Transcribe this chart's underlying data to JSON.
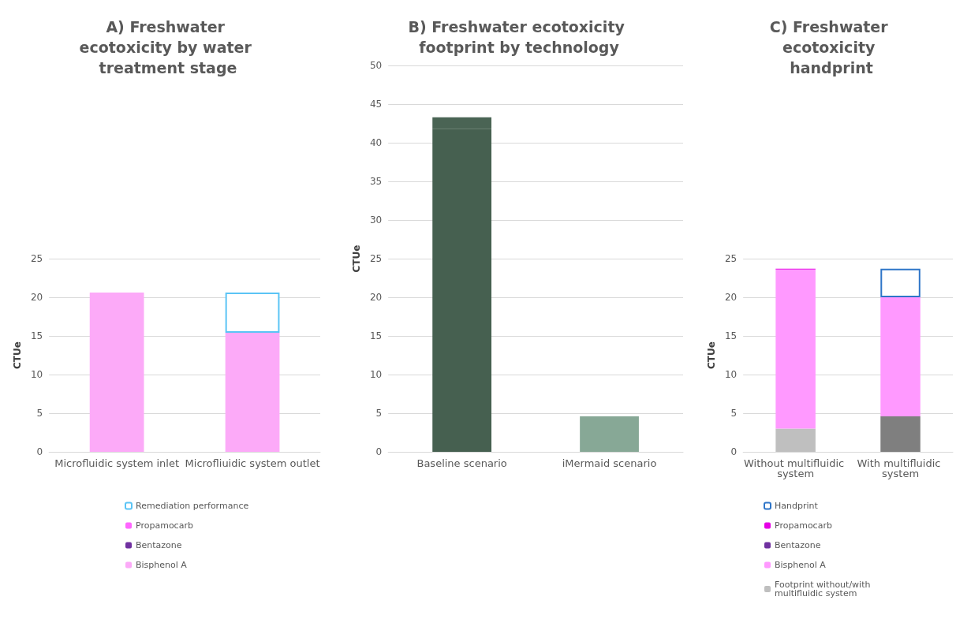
{
  "chart_data": [
    {
      "type": "bar",
      "title": "A) Freshwater ecotoxicity by water treatment stage",
      "ylabel": "CTUe",
      "categories": [
        "Microfluidic system inlet",
        "Microfliuidic system outlet"
      ],
      "stacked": true,
      "ylim": [
        0,
        25
      ],
      "yticks": [
        0,
        5,
        10,
        15,
        20,
        25
      ],
      "grid": "y",
      "legend": "bottom",
      "series": [
        {
          "name": "Bisphenol A",
          "color": "#fcaaf8",
          "values": [
            20.6,
            15.4
          ]
        },
        {
          "name": "Bentazone",
          "color": "#7030a0",
          "values": [
            0,
            0
          ]
        },
        {
          "name": "Propamocarb",
          "color": "#ff66ff",
          "values": [
            0,
            0
          ]
        },
        {
          "name": "Remediation performance",
          "color": "#5bc4f5",
          "line_style": "solid",
          "values": [
            null,
            5.2
          ]
        }
      ]
    },
    {
      "type": "bar",
      "title": "B) Freshwater ecotoxicity footprint by technology",
      "ylabel": "CTUe",
      "categories": [
        "Baseline scenario",
        "iMermaid scenario"
      ],
      "stacked": true,
      "ylim": [
        0,
        50
      ],
      "yticks": [
        0,
        5,
        10,
        15,
        20,
        25,
        30,
        35,
        40,
        45,
        50
      ],
      "grid": "y",
      "series": [
        {
          "colors": [
            "#466050",
            "#87a896"
          ],
          "values": [
            41.8,
            4.6
          ]
        },
        {
          "color": "#4a6454",
          "values": [
            1.5,
            null
          ]
        }
      ]
    },
    {
      "type": "bar",
      "title": "C) Freshwater ecotoxicity handprint",
      "ylabel": "CTUe",
      "categories": [
        "Without multifluidic system",
        "With multifluidic system"
      ],
      "stacked": true,
      "ylim": [
        0,
        25
      ],
      "yticks": [
        0,
        5,
        10,
        15,
        20,
        25
      ],
      "grid": "y",
      "legend": "bottom",
      "series": [
        {
          "name": "Footprint without/with multifluidic system",
          "colors": [
            "#bfbfbf",
            "#7f7f7f"
          ],
          "values": [
            3.0,
            4.6
          ]
        },
        {
          "name": "Bisphenol A",
          "color": "#ff99ff",
          "values": [
            20.6,
            15.4
          ]
        },
        {
          "name": "Bentazone",
          "color": "#7030a0",
          "values": [
            0,
            0
          ]
        },
        {
          "name": "Propamocarb",
          "color": "#e600e6",
          "values": [
            0.1,
            0
          ]
        },
        {
          "name": "Handprint",
          "color": "#2e75c8",
          "line_style": "solid",
          "values": [
            null,
            3.7
          ]
        }
      ]
    }
  ]
}
